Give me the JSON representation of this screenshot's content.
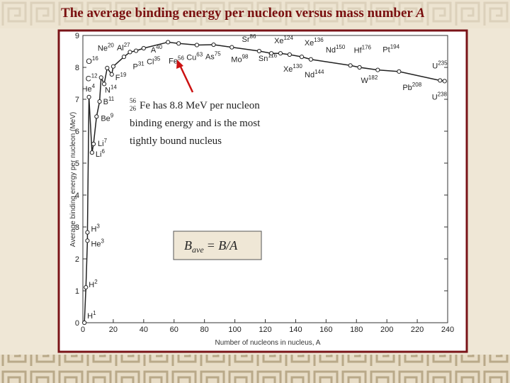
{
  "chart_data": {
    "type": "line",
    "title": "The average binding energy per nucleon versus mass number",
    "title_symbol": "A",
    "xlabel": "Number of nucleons in nucleus, A",
    "ylabel": "Average binding energy per nucleon (MeV)",
    "x": [
      1,
      2,
      3,
      3,
      4,
      6,
      7,
      9,
      11,
      12,
      14,
      16,
      19,
      20,
      27,
      31,
      35,
      40,
      56,
      63,
      75,
      86,
      98,
      116,
      124,
      130,
      136,
      144,
      150,
      176,
      182,
      194,
      208,
      235,
      238
    ],
    "symbols": [
      "H",
      "H",
      "He",
      "H",
      "He",
      "Li",
      "Li",
      "Be",
      "B",
      "C",
      "N",
      "O",
      "F",
      "Ne",
      "Al",
      "P",
      "Cl",
      "A",
      "Fe",
      "Cu",
      "As",
      "Sr",
      "Mo",
      "Sn",
      "Xe",
      "Xe",
      "Xe",
      "Nd",
      "Nd",
      "Hf",
      "W",
      "Pt",
      "Pb",
      "U",
      "U"
    ],
    "values": [
      0,
      1.11,
      2.57,
      2.83,
      7.07,
      5.33,
      5.6,
      6.46,
      6.93,
      7.68,
      7.48,
      7.98,
      7.78,
      8.03,
      8.33,
      8.48,
      8.52,
      8.6,
      8.79,
      8.75,
      8.7,
      8.71,
      8.63,
      8.51,
      8.44,
      8.44,
      8.4,
      8.33,
      8.25,
      8.06,
      8.0,
      7.92,
      7.87,
      7.59,
      7.57
    ],
    "color": "#222222",
    "xlim": [
      0,
      240
    ],
    "xticks": [
      0,
      20,
      40,
      60,
      80,
      100,
      120,
      140,
      160,
      180,
      200,
      220,
      240
    ],
    "ylim": [
      0,
      9
    ],
    "yticks": [
      0,
      1,
      2,
      3,
      4,
      5,
      6,
      7,
      8,
      9
    ],
    "grid": false,
    "annotation": {
      "mass": "56",
      "atomic": "26",
      "lines": [
        "Fe has 8.8 MeV per nucleon",
        "binding energy and is the most",
        "tightly bound nucleus"
      ]
    },
    "formula": {
      "symbol": "B",
      "sub": "ave",
      "rest": "= B/A"
    }
  }
}
